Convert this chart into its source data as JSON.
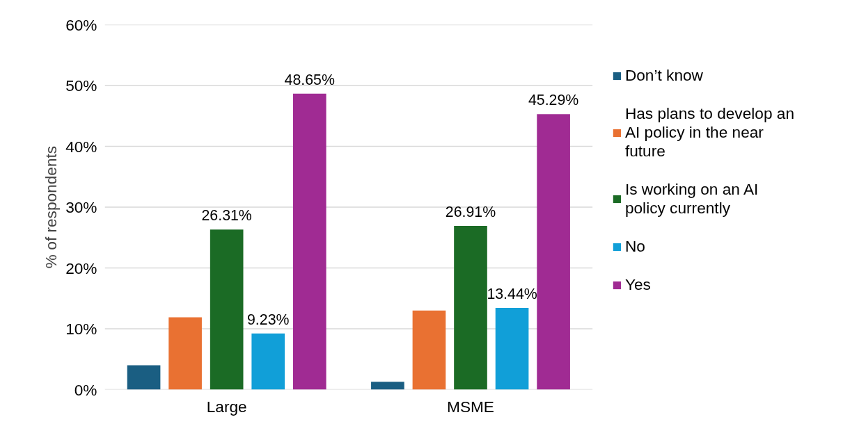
{
  "chart_data": {
    "type": "bar",
    "ylabel": "% of respondents",
    "categories": [
      "Large",
      "MSME"
    ],
    "series": [
      {
        "name": "Don’t know",
        "color": "#1a5e82",
        "values": [
          4.0,
          1.3
        ],
        "value_labels": [
          null,
          null
        ]
      },
      {
        "name": "Has plans to develop an AI policy in the near future",
        "color": "#e97132",
        "values": [
          11.9,
          13.0
        ],
        "value_labels": [
          null,
          null
        ]
      },
      {
        "name": "Is working on an AI policy currently",
        "color": "#1b6b25",
        "values": [
          26.31,
          26.91
        ],
        "value_labels": [
          "26.31%",
          "26.91%"
        ]
      },
      {
        "name": "No",
        "color": "#119fd8",
        "values": [
          9.23,
          13.44
        ],
        "value_labels": [
          "9.23%",
          "13.44%"
        ]
      },
      {
        "name": "Yes",
        "color": "#a02b93",
        "values": [
          48.65,
          45.29
        ],
        "value_labels": [
          "48.65%",
          "45.29%"
        ]
      }
    ],
    "ylim": [
      0,
      60
    ],
    "yticks": [
      {
        "value": 0,
        "label": "0%"
      },
      {
        "value": 10,
        "label": "10%"
      },
      {
        "value": 20,
        "label": "20%"
      },
      {
        "value": 30,
        "label": "30%"
      },
      {
        "value": 40,
        "label": "40%"
      },
      {
        "value": 50,
        "label": "50%"
      },
      {
        "value": 60,
        "label": "60%"
      }
    ],
    "grid": "y",
    "legend": "right"
  }
}
